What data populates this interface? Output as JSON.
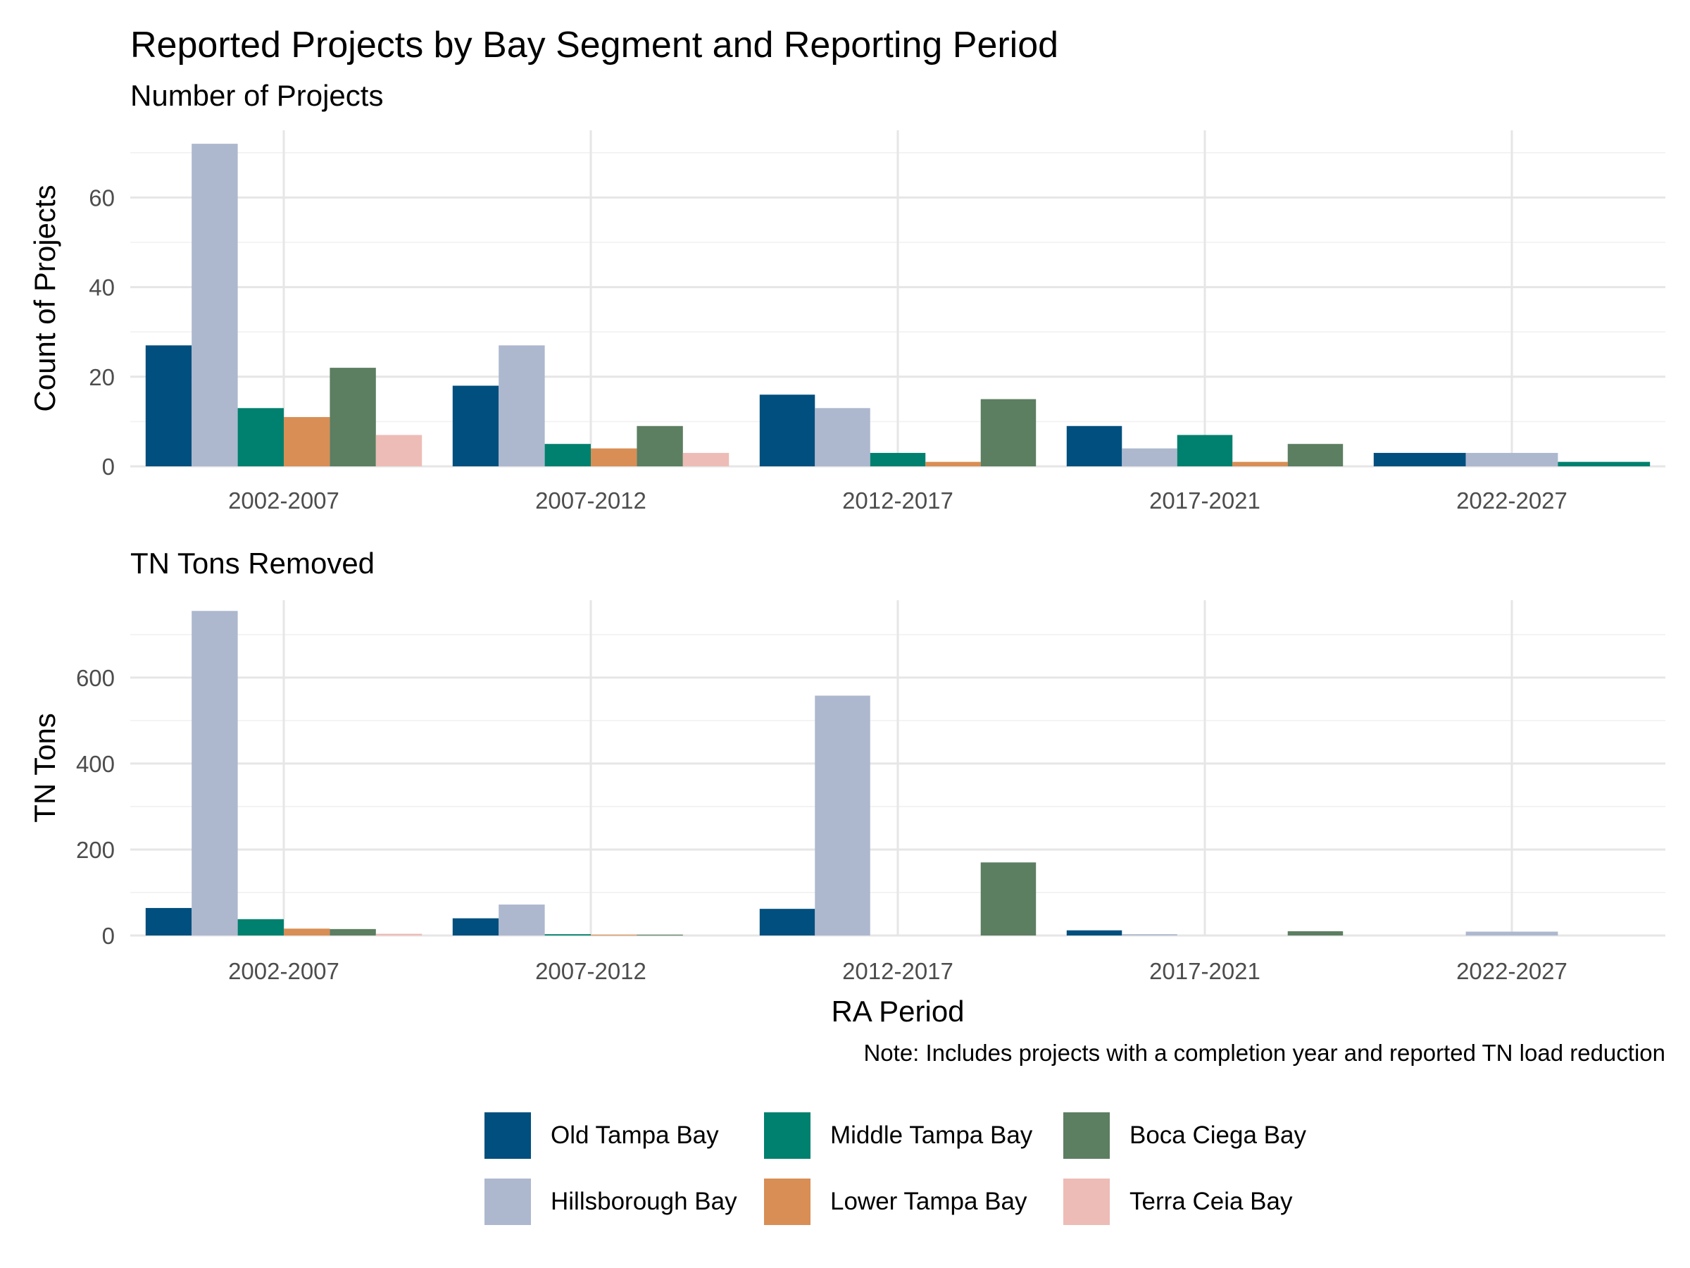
{
  "title": "Reported Projects by Bay Segment and Reporting Period",
  "note": "Note: Includes projects with a completion year and reported TN load reduction",
  "colors": {
    "Old Tampa Bay": "#004F7E",
    "Hillsborough Bay": "#ADB8CF",
    "Middle Tampa Bay": "#00806E",
    "Lower Tampa Bay": "#D88E55",
    "Boca Ciega Bay": "#5C7E61",
    "Terra Ceia Bay": "#EDBCB6"
  },
  "legend": {
    "items": [
      "Old Tampa Bay",
      "Middle Tampa Bay",
      "Boca Ciega Bay",
      "Hillsborough Bay",
      "Lower Tampa Bay",
      "Terra Ceia Bay"
    ]
  },
  "chart_data": [
    {
      "type": "bar",
      "title": "Number of Projects",
      "xlabel": "",
      "ylabel": "Count of Projects",
      "categories": [
        "2002-2007",
        "2007-2012",
        "2012-2017",
        "2017-2021",
        "2022-2027"
      ],
      "ylim": [
        0,
        75
      ],
      "yticks": [
        0,
        20,
        40,
        60
      ],
      "series": [
        {
          "name": "Old Tampa Bay",
          "values": [
            27,
            18,
            16,
            9,
            3
          ]
        },
        {
          "name": "Hillsborough Bay",
          "values": [
            72,
            27,
            13,
            4,
            3
          ]
        },
        {
          "name": "Middle Tampa Bay",
          "values": [
            13,
            5,
            3,
            7,
            1
          ]
        },
        {
          "name": "Lower Tampa Bay",
          "values": [
            11,
            4,
            1,
            1,
            null
          ]
        },
        {
          "name": "Boca Ciega Bay",
          "values": [
            22,
            9,
            15,
            5,
            null
          ]
        },
        {
          "name": "Terra Ceia Bay",
          "values": [
            7,
            3,
            null,
            null,
            null
          ]
        }
      ]
    },
    {
      "type": "bar",
      "title": "TN Tons Removed",
      "xlabel": "RA Period",
      "ylabel": "TN Tons",
      "categories": [
        "2002-2007",
        "2007-2012",
        "2012-2017",
        "2017-2021",
        "2022-2027"
      ],
      "ylim": [
        0,
        780
      ],
      "yticks": [
        0,
        200,
        400,
        600
      ],
      "series": [
        {
          "name": "Old Tampa Bay",
          "values": [
            64,
            40,
            62,
            12,
            0
          ]
        },
        {
          "name": "Hillsborough Bay",
          "values": [
            755,
            72,
            558,
            3,
            9
          ]
        },
        {
          "name": "Middle Tampa Bay",
          "values": [
            38,
            3,
            0,
            0,
            0
          ]
        },
        {
          "name": "Lower Tampa Bay",
          "values": [
            16,
            2,
            0,
            0,
            null
          ]
        },
        {
          "name": "Boca Ciega Bay",
          "values": [
            15,
            2,
            170,
            10,
            null
          ]
        },
        {
          "name": "Terra Ceia Bay",
          "values": [
            4,
            0,
            null,
            null,
            null
          ]
        }
      ]
    }
  ]
}
